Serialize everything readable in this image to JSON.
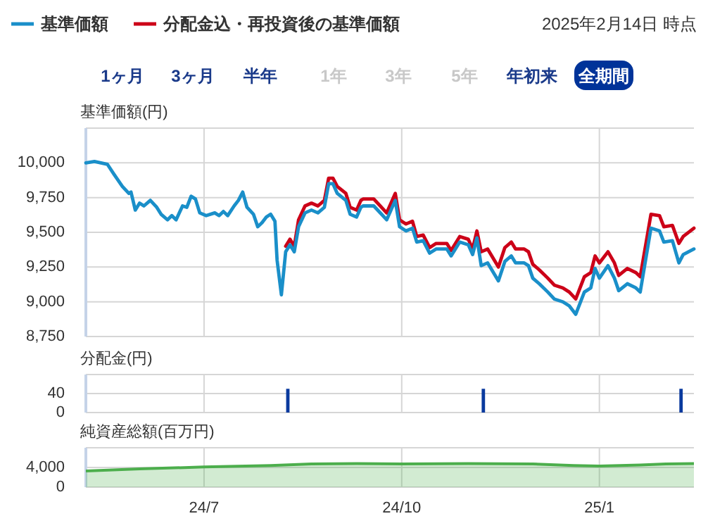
{
  "chart_data": [
    {
      "type": "line",
      "ylabel": "基準価額(円)",
      "legend": "top",
      "grid": true,
      "tick_labels": "y",
      "line_style": "solid",
      "annotations": [
        "2025年2月14日 時点",
        "1ヶ月",
        "3ヶ月",
        "半年",
        "1年",
        "3年",
        "5年",
        "年初来",
        "全期間"
      ],
      "xlim": [
        "2024-05-07",
        "2025-02-14"
      ],
      "xticks": [
        {
          "value": "2024-07-01",
          "label": null
        },
        {
          "value": "2024-10-01",
          "label": null
        },
        {
          "value": "2025-01-01",
          "label": null
        }
      ],
      "ylim": [
        8750,
        10250
      ],
      "yticks": [
        {
          "value": 8750,
          "label": "8,750"
        },
        {
          "value": 9000,
          "label": "9,000"
        },
        {
          "value": 9250,
          "label": "9,250"
        },
        {
          "value": 9500,
          "label": "9,500"
        },
        {
          "value": 9750,
          "label": "9,750"
        },
        {
          "value": 10000,
          "label": "10,000"
        },
        {
          "value": 10250,
          "label": null
        }
      ],
      "x": [
        "2024-05-07",
        "2024-05-11",
        "2024-05-17",
        "2024-05-20",
        "2024-05-24",
        "2024-05-27",
        "2024-05-28",
        "2024-05-30",
        "2024-06-01",
        "2024-06-03",
        "2024-06-06",
        "2024-06-09",
        "2024-06-11",
        "2024-06-14",
        "2024-06-16",
        "2024-06-18",
        "2024-06-21",
        "2024-06-23",
        "2024-06-25",
        "2024-06-27",
        "2024-06-29",
        "2024-07-02",
        "2024-07-06",
        "2024-07-08",
        "2024-07-10",
        "2024-07-12",
        "2024-07-15",
        "2024-07-17",
        "2024-07-19",
        "2024-07-21",
        "2024-07-24",
        "2024-07-26",
        "2024-07-28",
        "2024-07-30",
        "2024-08-01",
        "2024-08-03",
        "2024-08-04",
        "2024-08-06",
        "2024-08-08",
        "2024-08-10",
        "2024-08-12",
        "2024-08-14",
        "2024-08-17",
        "2024-08-20",
        "2024-08-23",
        "2024-08-26",
        "2024-08-28",
        "2024-08-30",
        "2024-09-01",
        "2024-09-05",
        "2024-09-07",
        "2024-09-10",
        "2024-09-12",
        "2024-09-13",
        "2024-09-18",
        "2024-09-24",
        "2024-09-28",
        "2024-09-30",
        "2024-10-03",
        "2024-10-06",
        "2024-10-08",
        "2024-10-11",
        "2024-10-14",
        "2024-10-17",
        "2024-10-22",
        "2024-10-24",
        "2024-10-28",
        "2024-11-01",
        "2024-11-03",
        "2024-11-05",
        "2024-11-07",
        "2024-11-10",
        "2024-11-15",
        "2024-11-18",
        "2024-11-21",
        "2024-11-23",
        "2024-11-27",
        "2024-11-29",
        "2024-12-01",
        "2024-12-04",
        "2024-12-08",
        "2024-12-11",
        "2024-12-15",
        "2024-12-18",
        "2024-12-21",
        "2024-12-25",
        "2024-12-28",
        "2024-12-30",
        "2025-01-01",
        "2025-01-05",
        "2025-01-08",
        "2025-01-10",
        "2025-01-14",
        "2025-01-18",
        "2025-01-20",
        "2025-01-25",
        "2025-01-29",
        "2025-01-31",
        "2025-02-04",
        "2025-02-07",
        "2025-02-09",
        "2025-02-14"
      ],
      "series": [
        {
          "name": "分配金込・再投資後の基準価額",
          "color": "#cc0018",
          "values": [
            null,
            null,
            null,
            null,
            null,
            null,
            null,
            null,
            null,
            null,
            null,
            null,
            null,
            null,
            null,
            null,
            null,
            null,
            null,
            null,
            null,
            null,
            null,
            null,
            null,
            null,
            null,
            null,
            null,
            null,
            null,
            null,
            null,
            null,
            null,
            null,
            null,
            null,
            9400,
            9450,
            9400,
            9590,
            9690,
            9710,
            9690,
            9730,
            9890,
            9890,
            9830,
            9780,
            9680,
            9660,
            9730,
            9740,
            9740,
            9640,
            9780,
            9590,
            9560,
            9580,
            9470,
            9480,
            9390,
            9420,
            9420,
            9370,
            9470,
            9450,
            9380,
            9510,
            9360,
            9380,
            9250,
            9390,
            9430,
            9380,
            9380,
            9360,
            9270,
            9230,
            9170,
            9120,
            9100,
            9070,
            9020,
            9180,
            9210,
            9330,
            9280,
            9360,
            9280,
            9190,
            9240,
            9210,
            9180,
            9630,
            9620,
            9540,
            9550,
            9420,
            9470,
            9530
          ]
        },
        {
          "name": "基準価額",
          "color": "#1a8fc9",
          "values": [
            10000,
            10010,
            9990,
            9920,
            9830,
            9780,
            9790,
            9660,
            9710,
            9690,
            9730,
            9680,
            9630,
            9590,
            9620,
            9590,
            9690,
            9680,
            9760,
            9740,
            9640,
            9620,
            9640,
            9620,
            9650,
            9620,
            9690,
            9730,
            9790,
            9680,
            9630,
            9540,
            9570,
            9610,
            9630,
            9580,
            9300,
            9050,
            9360,
            9410,
            9360,
            9540,
            9640,
            9660,
            9640,
            9680,
            9850,
            9850,
            9780,
            9730,
            9630,
            9610,
            9680,
            9690,
            9690,
            9590,
            9730,
            9540,
            9510,
            9530,
            9430,
            9440,
            9350,
            9380,
            9380,
            9330,
            9430,
            9410,
            9340,
            9460,
            9260,
            9280,
            9150,
            9290,
            9330,
            9280,
            9280,
            9260,
            9170,
            9130,
            9070,
            9020,
            9000,
            8970,
            8910,
            9070,
            9100,
            9240,
            9170,
            9260,
            9170,
            9080,
            9130,
            9100,
            9070,
            9530,
            9510,
            9430,
            9440,
            9280,
            9340,
            9380
          ]
        }
      ]
    },
    {
      "type": "bar",
      "ylabel": "分配金(円)",
      "grid": true,
      "tick_labels": "y",
      "color": "#0a3a9e",
      "xlim": [
        "2024-05-07",
        "2025-02-14"
      ],
      "xticks": [
        {
          "value": "2024-07-01",
          "label": null
        },
        {
          "value": "2024-10-01",
          "label": null
        },
        {
          "value": "2025-01-01",
          "label": null
        }
      ],
      "ylim": [
        0,
        80
      ],
      "yticks": [
        {
          "value": 0,
          "label": "0"
        },
        {
          "value": 40,
          "label": "40"
        },
        {
          "value": 80,
          "label": null
        }
      ],
      "x": [
        "2024-08-09",
        "2024-11-08",
        "2025-02-08"
      ],
      "values": [
        50,
        50,
        50
      ]
    },
    {
      "type": "area",
      "ylabel": "純資産総額(百万円)",
      "grid": true,
      "color": "#4cae4c",
      "xlim": [
        "2024-05-07",
        "2025-02-14"
      ],
      "xticks": [
        {
          "value": "2024-07-01",
          "label": "24/7"
        },
        {
          "value": "2024-10-01",
          "label": "24/10"
        },
        {
          "value": "2025-01-01",
          "label": "25/1"
        }
      ],
      "ylim": [
        0,
        8000
      ],
      "yticks": [
        0,
        {
          "value": 4000,
          "label": "4,000"
        },
        {
          "value": 8000,
          "label": null
        }
      ],
      "x": [
        "2024-05-07",
        "2024-06-01",
        "2024-07-01",
        "2024-08-01",
        "2024-08-20",
        "2024-09-10",
        "2024-10-01",
        "2024-11-01",
        "2024-12-01",
        "2024-12-20",
        "2025-01-01",
        "2025-01-20",
        "2025-02-01",
        "2025-02-14"
      ],
      "values": [
        3300,
        3700,
        4100,
        4400,
        4700,
        4800,
        4700,
        4800,
        4700,
        4400,
        4300,
        4500,
        4700,
        4800
      ]
    }
  ]
}
